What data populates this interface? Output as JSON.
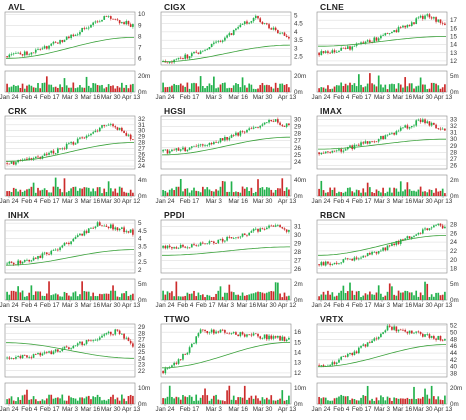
{
  "colors": {
    "up": "#22b14c",
    "down": "#cc2b2b",
    "ma": "#3aa13a",
    "grid": "#d6d6d6",
    "text": "#333333",
    "frame": "#888888"
  },
  "chart_data": [
    {
      "type": "candlestick",
      "ticker": "AVL",
      "xticks": [
        "Jan 24",
        "Feb 4",
        "Feb 17",
        "Mar 3",
        "Mar 16",
        "Mar 30",
        "Apr 13"
      ],
      "yticks": [
        6,
        7,
        8,
        9,
        10
      ],
      "ylim": [
        5.4,
        10.2
      ],
      "vol_ticks": [
        "20m",
        "0m"
      ],
      "vol_max": 25,
      "start": 6.2,
      "end": 9.0,
      "peak": 9.8,
      "peak_pos": 0.78,
      "ma_start": 6.0,
      "ma_end": 7.9
    },
    {
      "type": "candlestick",
      "ticker": "CIGX",
      "xticks": [
        "Jan 24",
        "Feb 17",
        "Mar 3",
        "Mar 16",
        "Mar 30",
        "Apr 13"
      ],
      "yticks": [
        2.5,
        3.0,
        3.5,
        4.0,
        4.5,
        5.0
      ],
      "ylim": [
        2.0,
        5.2
      ],
      "vol_ticks": [
        "20m",
        "0m"
      ],
      "vol_max": 25,
      "start": 2.2,
      "end": 3.6,
      "peak": 4.9,
      "peak_pos": 0.72,
      "ma_start": 2.2,
      "ma_end": 3.2
    },
    {
      "type": "candlestick",
      "ticker": "CLNE",
      "xticks": [
        "Jan 24",
        "Feb 4",
        "Feb 17",
        "Mar 3",
        "Mar 16",
        "Mar 30",
        "Apr 13"
      ],
      "yticks": [
        12,
        13,
        14,
        15,
        16,
        17
      ],
      "ylim": [
        11.5,
        18.0
      ],
      "vol_ticks": [
        "5m",
        "0m"
      ],
      "vol_max": 6,
      "start": 13.0,
      "end": 16.5,
      "peak": 17.6,
      "peak_pos": 0.85,
      "ma_start": 13.8,
      "ma_end": 15.0
    },
    {
      "type": "candlestick",
      "ticker": "CRK",
      "xticks": [
        "Jan 24",
        "Feb 4",
        "Feb 17",
        "Mar 3",
        "Mar 16",
        "Mar 30",
        "Apr 12"
      ],
      "yticks": [
        24,
        25,
        26,
        27,
        28,
        29,
        30,
        31,
        32
      ],
      "ylim": [
        23.5,
        32.5
      ],
      "vol_ticks": [
        "4m",
        "0m"
      ],
      "vol_max": 5,
      "start": 24.5,
      "end": 28.5,
      "peak": 31.5,
      "peak_pos": 0.82,
      "ma_start": 24.8,
      "ma_end": 28.0
    },
    {
      "type": "candlestick",
      "ticker": "HGSI",
      "xticks": [
        "Jan 24",
        "Feb 17",
        "Mar 3",
        "Mar 16",
        "Mar 30",
        "Apr 13"
      ],
      "yticks": [
        24,
        25,
        26,
        27,
        28,
        29,
        30
      ],
      "ylim": [
        23.0,
        30.5
      ],
      "vol_ticks": [
        "40m",
        "0m"
      ],
      "vol_max": 45,
      "start": 25.5,
      "end": 29.0,
      "peak": 30.0,
      "peak_pos": 0.86,
      "ma_start": 25.0,
      "ma_end": 27.5
    },
    {
      "type": "candlestick",
      "ticker": "IMAX",
      "xticks": [
        "Jan 24",
        "Feb 4",
        "Feb 17",
        "Mar 3",
        "Mar 16",
        "Mar 30",
        "Apr 13"
      ],
      "yticks": [
        26,
        27,
        28,
        29,
        30,
        31,
        32,
        33
      ],
      "ylim": [
        25.5,
        33.5
      ],
      "vol_ticks": [
        "2m",
        "0m"
      ],
      "vol_max": 2.5,
      "start": 28.0,
      "end": 31.5,
      "peak": 32.8,
      "peak_pos": 0.8,
      "ma_start": 28.5,
      "ma_end": 30.0
    },
    {
      "type": "candlestick",
      "ticker": "INHX",
      "xticks": [
        "Jan 24",
        "Feb 4",
        "Feb 17",
        "Mar 3",
        "Mar 16",
        "Mar 30",
        "Apr 13"
      ],
      "yticks": [
        2.0,
        2.5,
        3.0,
        3.5,
        4.0,
        4.5,
        5.0
      ],
      "ylim": [
        1.8,
        5.2
      ],
      "vol_ticks": [
        "5m",
        "0m"
      ],
      "vol_max": 6,
      "start": 2.4,
      "end": 4.4,
      "peak": 5.0,
      "peak_pos": 0.73,
      "ma_start": 2.3,
      "ma_end": 3.3
    },
    {
      "type": "candlestick",
      "ticker": "PPDI",
      "xticks": [
        "Jan 24",
        "Feb 4",
        "Feb 17",
        "Mar 3",
        "Mar 16",
        "Mar 30",
        "Apr 12"
      ],
      "yticks": [
        26,
        27,
        28,
        29,
        30,
        31
      ],
      "ylim": [
        25.5,
        31.8
      ],
      "vol_ticks": [
        "2m",
        "0m"
      ],
      "vol_max": 2.5,
      "start": 28.5,
      "end": 30.5,
      "peak": 31.2,
      "peak_pos": 0.88,
      "ma_start": 27.6,
      "ma_end": 28.6
    },
    {
      "type": "candlestick",
      "ticker": "RBCN",
      "xticks": [
        "Jan 24",
        "Feb 4",
        "Feb 17",
        "Mar 3",
        "Mar 16",
        "Mar 30",
        "Apr 13"
      ],
      "yticks": [
        18,
        20,
        22,
        24,
        26,
        28
      ],
      "ylim": [
        17.0,
        29.0
      ],
      "vol_ticks": [
        "5m",
        "0m"
      ],
      "vol_max": 6,
      "start": 19.0,
      "end": 27.0,
      "peak": 28.0,
      "peak_pos": 0.92,
      "ma_start": 21.0,
      "ma_end": 25.5
    },
    {
      "type": "candlestick",
      "ticker": "TSLA",
      "xticks": [
        "Jan 24",
        "Feb 4",
        "Feb 17",
        "Mar 3",
        "Mar 16",
        "Mar 30",
        "Apr 13"
      ],
      "yticks": [
        22,
        23,
        24,
        25,
        26,
        27,
        28,
        29
      ],
      "ylim": [
        21.0,
        29.5
      ],
      "vol_ticks": [
        "10m",
        "0m"
      ],
      "vol_max": 12,
      "start": 24.0,
      "end": 26.0,
      "peak": 28.5,
      "peak_pos": 0.88,
      "ma_start": 26.5,
      "ma_end": 24.0
    },
    {
      "type": "candlestick",
      "ticker": "TTWO",
      "xticks": [
        "Jan 24",
        "Feb 17",
        "Mar 3",
        "Mar 16",
        "Mar 30",
        "Apr 13"
      ],
      "yticks": [
        12,
        13,
        14,
        15,
        16
      ],
      "ylim": [
        11.6,
        16.8
      ],
      "vol_ticks": [
        "10m",
        "0m"
      ],
      "vol_max": 12,
      "start": 12.2,
      "end": 15.3,
      "peak": 16.2,
      "peak_pos": 0.3,
      "ma_start": 12.5,
      "ma_end": 15.0
    },
    {
      "type": "candlestick",
      "ticker": "VRTX",
      "xticks": [
        "Jan 24",
        "Feb 4",
        "Feb 17",
        "Mar 3",
        "Mar 16",
        "Mar 30",
        "Apr 13"
      ],
      "yticks": [
        38,
        40,
        42,
        44,
        46,
        48,
        50,
        52
      ],
      "ylim": [
        37.0,
        52.5
      ],
      "vol_ticks": [
        "20m",
        "0m"
      ],
      "vol_max": 25,
      "start": 40.5,
      "end": 48.0,
      "peak": 51.5,
      "peak_pos": 0.55,
      "ma_start": 40.0,
      "ma_end": 46.5
    }
  ]
}
